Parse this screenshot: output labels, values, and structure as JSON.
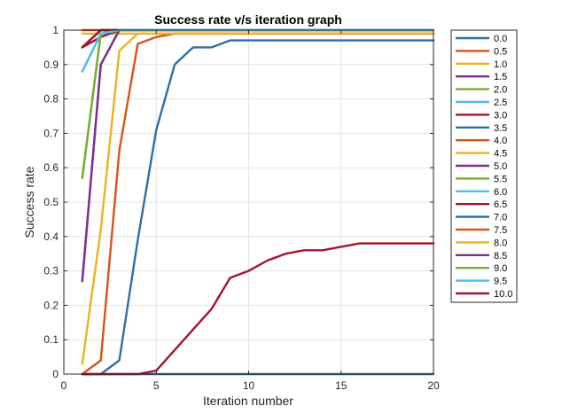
{
  "chart_data": {
    "type": "line",
    "title": "Success rate v/s iteration graph",
    "xlabel": "Iteration number",
    "ylabel": "Success rate",
    "xlim": [
      0,
      20
    ],
    "ylim": [
      0,
      1
    ],
    "xticks": [
      0,
      5,
      10,
      15,
      20
    ],
    "yticks": [
      0,
      0.1,
      0.2,
      0.3,
      0.4,
      0.5,
      0.6,
      0.7,
      0.8,
      0.9,
      1
    ],
    "xtick_labels": [
      "0",
      "5",
      "10",
      "15",
      "20"
    ],
    "ytick_labels": [
      "0",
      "0.1",
      "0.2",
      "0.3",
      "0.4",
      "0.5",
      "0.6",
      "0.7",
      "0.8",
      "0.9",
      "1"
    ],
    "grid": true,
    "legend_position": "outside-right",
    "x": [
      1,
      2,
      3,
      4,
      5,
      6,
      7,
      8,
      9,
      10,
      11,
      12,
      13,
      14,
      15,
      16,
      17,
      18,
      19,
      20
    ],
    "series": [
      {
        "name": "0.0",
        "color": "#2e6ea6",
        "values": [
          0,
          0,
          0,
          0,
          0,
          0,
          0,
          0,
          0,
          0,
          0,
          0,
          0,
          0,
          0,
          0,
          0,
          0,
          0,
          0
        ]
      },
      {
        "name": "0.5",
        "color": "#d95319",
        "values": [
          1,
          1,
          1,
          1,
          1,
          1,
          1,
          1,
          1,
          1,
          1,
          1,
          1,
          1,
          1,
          1,
          1,
          1,
          1,
          1
        ]
      },
      {
        "name": "1.0",
        "color": "#edb120",
        "values": [
          0.99,
          0.99,
          0.99,
          0.99,
          0.99,
          0.99,
          0.99,
          0.99,
          0.99,
          0.99,
          0.99,
          0.99,
          0.99,
          0.99,
          0.99,
          0.99,
          0.99,
          0.99,
          0.99,
          0.99
        ]
      },
      {
        "name": "1.5",
        "color": "#7e2f8e",
        "values": [
          0.95,
          1,
          1,
          1,
          1,
          1,
          1,
          1,
          1,
          1,
          1,
          1,
          1,
          1,
          1,
          1,
          1,
          1,
          1,
          1
        ]
      },
      {
        "name": "2.0",
        "color": "#77ac30",
        "values": [
          0.95,
          1,
          1,
          1,
          1,
          1,
          1,
          1,
          1,
          1,
          1,
          1,
          1,
          1,
          1,
          1,
          1,
          1,
          1,
          1
        ]
      },
      {
        "name": "2.5",
        "color": "#4dbeee",
        "values": [
          0.88,
          0.99,
          1,
          1,
          1,
          1,
          1,
          1,
          1,
          1,
          1,
          1,
          1,
          1,
          1,
          1,
          1,
          1,
          1,
          1
        ]
      },
      {
        "name": "3.0",
        "color": "#a2142f",
        "values": [
          0.95,
          0.98,
          1,
          1,
          1,
          1,
          1,
          1,
          1,
          1,
          1,
          1,
          1,
          1,
          1,
          1,
          1,
          1,
          1,
          1
        ]
      },
      {
        "name": "3.5",
        "color": "#2e6ea6",
        "values": [
          0.95,
          1,
          1,
          1,
          1,
          1,
          1,
          1,
          1,
          1,
          1,
          1,
          1,
          1,
          1,
          1,
          1,
          1,
          1,
          1
        ]
      },
      {
        "name": "4.0",
        "color": "#d95319",
        "values": [
          0.95,
          1,
          1,
          1,
          1,
          1,
          1,
          1,
          1,
          1,
          1,
          1,
          1,
          1,
          1,
          1,
          1,
          1,
          1,
          1
        ]
      },
      {
        "name": "4.5",
        "color": "#edb120",
        "values": [
          0.88,
          0.99,
          1,
          1,
          1,
          1,
          1,
          1,
          1,
          1,
          1,
          1,
          1,
          1,
          1,
          1,
          1,
          1,
          1,
          1
        ]
      },
      {
        "name": "5.0",
        "color": "#7e2f8e",
        "values": [
          0.27,
          0.9,
          1,
          1,
          1,
          1,
          1,
          1,
          1,
          1,
          1,
          1,
          1,
          1,
          1,
          1,
          1,
          1,
          1,
          1
        ]
      },
      {
        "name": "5.5",
        "color": "#77ac30",
        "values": [
          0.57,
          0.99,
          1,
          1,
          1,
          1,
          1,
          1,
          1,
          1,
          1,
          1,
          1,
          1,
          1,
          1,
          1,
          1,
          1,
          1
        ]
      },
      {
        "name": "6.0",
        "color": "#4dbeee",
        "values": [
          0.88,
          0.99,
          1,
          1,
          1,
          1,
          1,
          1,
          1,
          1,
          1,
          1,
          1,
          1,
          1,
          1,
          1,
          1,
          1,
          1
        ]
      },
      {
        "name": "6.5",
        "color": "#a2142f",
        "values": [
          0.95,
          1,
          1,
          1,
          1,
          1,
          1,
          1,
          1,
          1,
          1,
          1,
          1,
          1,
          1,
          1,
          1,
          1,
          1,
          1
        ]
      },
      {
        "name": "7.0",
        "color": "#2e6ea6",
        "values": [
          0,
          0,
          0.04,
          0.39,
          0.71,
          0.9,
          0.95,
          0.95,
          0.97,
          0.97,
          0.97,
          0.97,
          0.97,
          0.97,
          0.97,
          0.97,
          0.97,
          0.97,
          0.97,
          0.97
        ]
      },
      {
        "name": "7.5",
        "color": "#d95319",
        "values": [
          0,
          0.04,
          0.65,
          0.96,
          0.98,
          0.99,
          0.99,
          0.99,
          0.99,
          0.99,
          0.99,
          0.99,
          0.99,
          0.99,
          0.99,
          0.99,
          0.99,
          0.99,
          0.99,
          0.99
        ]
      },
      {
        "name": "8.0",
        "color": "#edb120",
        "values": [
          0.03,
          0.42,
          0.94,
          0.99,
          0.99,
          0.99,
          0.99,
          0.99,
          0.99,
          0.99,
          0.99,
          0.99,
          0.99,
          0.99,
          0.99,
          0.99,
          0.99,
          0.99,
          0.99,
          0.99
        ]
      },
      {
        "name": "8.5",
        "color": "#7e2f8e",
        "values": [
          0.27,
          0.9,
          1,
          1,
          1,
          1,
          1,
          1,
          1,
          1,
          1,
          1,
          1,
          1,
          1,
          1,
          1,
          1,
          1,
          1
        ]
      },
      {
        "name": "9.0",
        "color": "#77ac30",
        "values": [
          0.57,
          0.99,
          1,
          1,
          1,
          1,
          1,
          1,
          1,
          1,
          1,
          1,
          1,
          1,
          1,
          1,
          1,
          1,
          1,
          1
        ]
      },
      {
        "name": "9.5",
        "color": "#4dbeee",
        "values": [
          0.88,
          0.99,
          1,
          1,
          1,
          1,
          1,
          1,
          1,
          1,
          1,
          1,
          1,
          1,
          1,
          1,
          1,
          1,
          1,
          1
        ]
      },
      {
        "name": "10.0",
        "color": "#a2142f",
        "values": [
          0,
          0,
          0,
          0,
          0.01,
          0.07,
          0.13,
          0.19,
          0.28,
          0.3,
          0.33,
          0.35,
          0.36,
          0.36,
          0.37,
          0.38,
          0.38,
          0.38,
          0.38,
          0.38
        ]
      }
    ]
  }
}
